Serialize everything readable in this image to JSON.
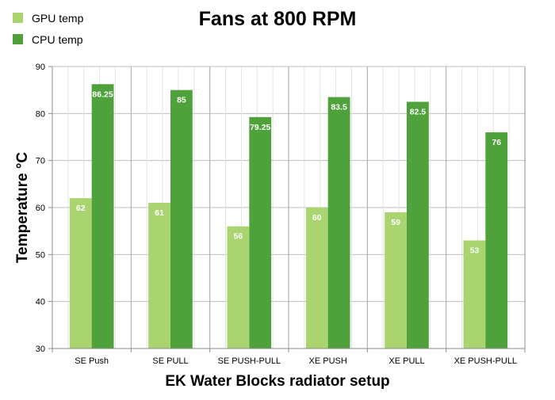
{
  "chart_data": {
    "type": "bar",
    "title": "Fans at 800 RPM",
    "xlabel": "EK Water Blocks radiator setup",
    "ylabel": "Temperature °C",
    "categories": [
      "SE Push",
      "SE PULL",
      "SE PUSH-PULL",
      "XE PUSH",
      "XE PULL",
      "XE PUSH-PULL"
    ],
    "series": [
      {
        "name": "GPU temp",
        "color": "#a9d46f",
        "values": [
          62,
          61,
          56,
          60,
          59,
          53
        ],
        "labels": [
          "62",
          "61",
          "56",
          "60",
          "59",
          "53"
        ]
      },
      {
        "name": "CPU temp",
        "color": "#4fa23b",
        "values": [
          86.25,
          85,
          79.25,
          83.5,
          82.5,
          76
        ],
        "labels": [
          "86.25",
          "85",
          "79.25",
          "83.5",
          "82.5",
          "76"
        ]
      }
    ],
    "ylim": [
      30,
      90
    ],
    "yticks": [
      "30",
      "40",
      "50",
      "60",
      "70",
      "80",
      "90"
    ],
    "grid": true,
    "legend_position": "top-left"
  }
}
